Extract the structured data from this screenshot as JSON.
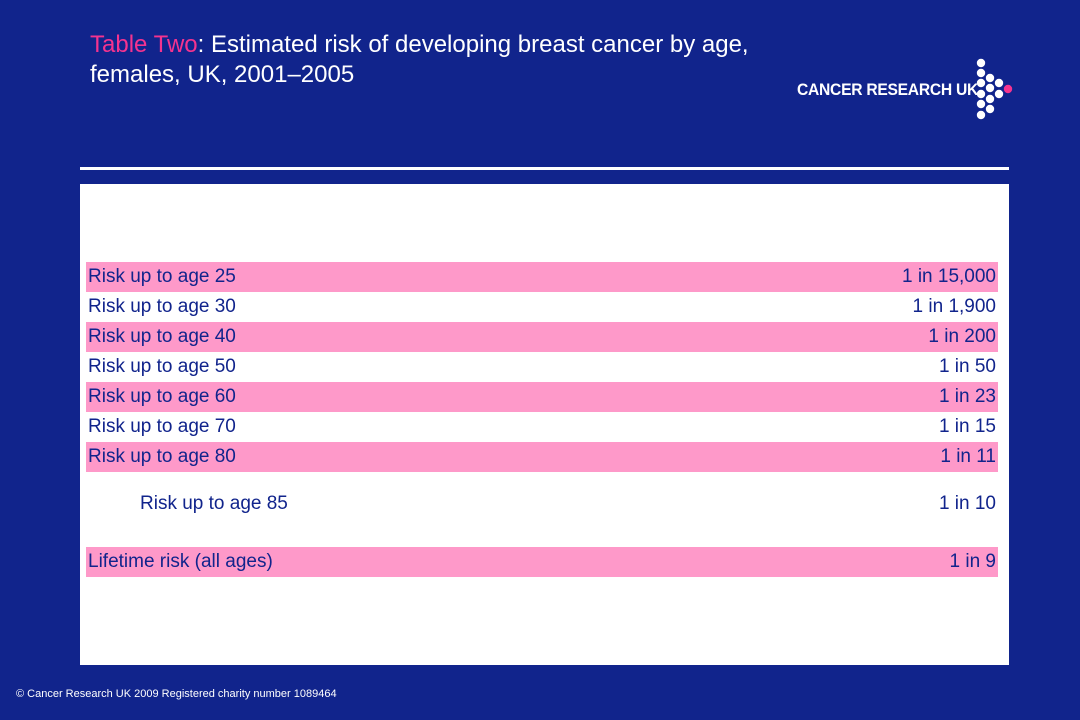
{
  "title": {
    "accent": "Table Two",
    "rest": ": Estimated risk of developing breast cancer by age, females, UK, 2001–2005"
  },
  "logo": {
    "text": "CANCER RESEARCH UK",
    "dot_color": "#ffffff",
    "accent_dot_color": "#f5338f"
  },
  "footer": "© Cancer Research UK 2009 Registered charity number 1089464",
  "colors": {
    "background": "#11248c",
    "row_highlight": "#fe99c9",
    "text": "#11248c"
  },
  "chart_data": {
    "type": "table",
    "rows": [
      {
        "label": "Risk up to age 25",
        "value": "1 in 15,000",
        "highlight": true
      },
      {
        "label": "Risk up to age 30",
        "value": "1 in 1,900",
        "highlight": false
      },
      {
        "label": "Risk up to age 40",
        "value": "1 in 200",
        "highlight": true
      },
      {
        "label": "Risk up to age 50",
        "value": "1 in 50",
        "highlight": false
      },
      {
        "label": "Risk up to age 60",
        "value": "1 in 23",
        "highlight": true
      },
      {
        "label": "Risk up to age 70",
        "value": "1 in 15",
        "highlight": false
      },
      {
        "label": "Risk up to age 80",
        "value": "1 in 11",
        "highlight": true
      },
      {
        "label": "Risk up to age 85",
        "value": "1 in 10",
        "highlight": false,
        "indent": true
      },
      {
        "label": "Lifetime risk (all ages)",
        "value": "1 in 9",
        "highlight": true
      }
    ]
  }
}
